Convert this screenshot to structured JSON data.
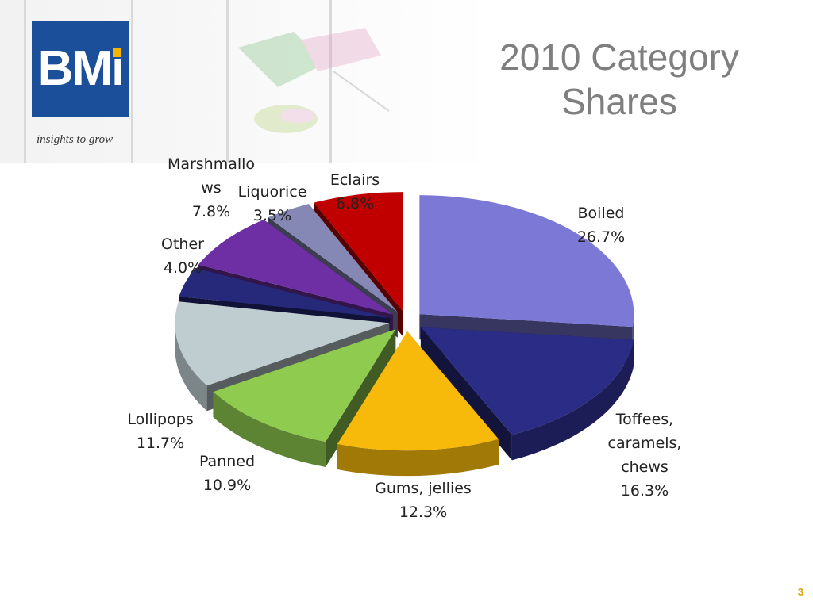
{
  "header": {
    "logo_text": "BMi",
    "tagline": "insights to grow",
    "title_line1": "2010 Category",
    "title_line2": "Shares"
  },
  "page_number": "3",
  "chart_data": {
    "type": "pie",
    "title": "2010 Category Shares",
    "style": "3d-exploded",
    "slices": [
      {
        "label_lines": [
          "Boiled"
        ],
        "value": 26.7,
        "value_label": "26.7%",
        "color": "#7B78D6"
      },
      {
        "label_lines": [
          "Toffees,",
          "caramels,",
          "chews"
        ],
        "value": 16.3,
        "value_label": "16.3%",
        "color": "#2B2C86"
      },
      {
        "label_lines": [
          "Gums, jellies"
        ],
        "value": 12.3,
        "value_label": "12.3%",
        "color": "#F7BA0A"
      },
      {
        "label_lines": [
          "Panned"
        ],
        "value": 10.9,
        "value_label": "10.9%",
        "color": "#8FCB4E"
      },
      {
        "label_lines": [
          "Lollipops"
        ],
        "value": 11.7,
        "value_label": "11.7%",
        "color": "#BFCCD0"
      },
      {
        "label_lines": [
          "Other"
        ],
        "value": 4.0,
        "value_label": "4.0%",
        "color": "#26297A"
      },
      {
        "label_lines": [
          "Marshmallo",
          "ws"
        ],
        "value": 7.8,
        "value_label": "7.8%",
        "color": "#6E2FA5"
      },
      {
        "label_lines": [
          "Liquorice"
        ],
        "value": 3.5,
        "value_label": "3.5%",
        "color": "#8587B5"
      },
      {
        "label_lines": [
          "Eclairs"
        ],
        "value": 6.8,
        "value_label": "6.8%",
        "color": "#C00000"
      }
    ]
  }
}
